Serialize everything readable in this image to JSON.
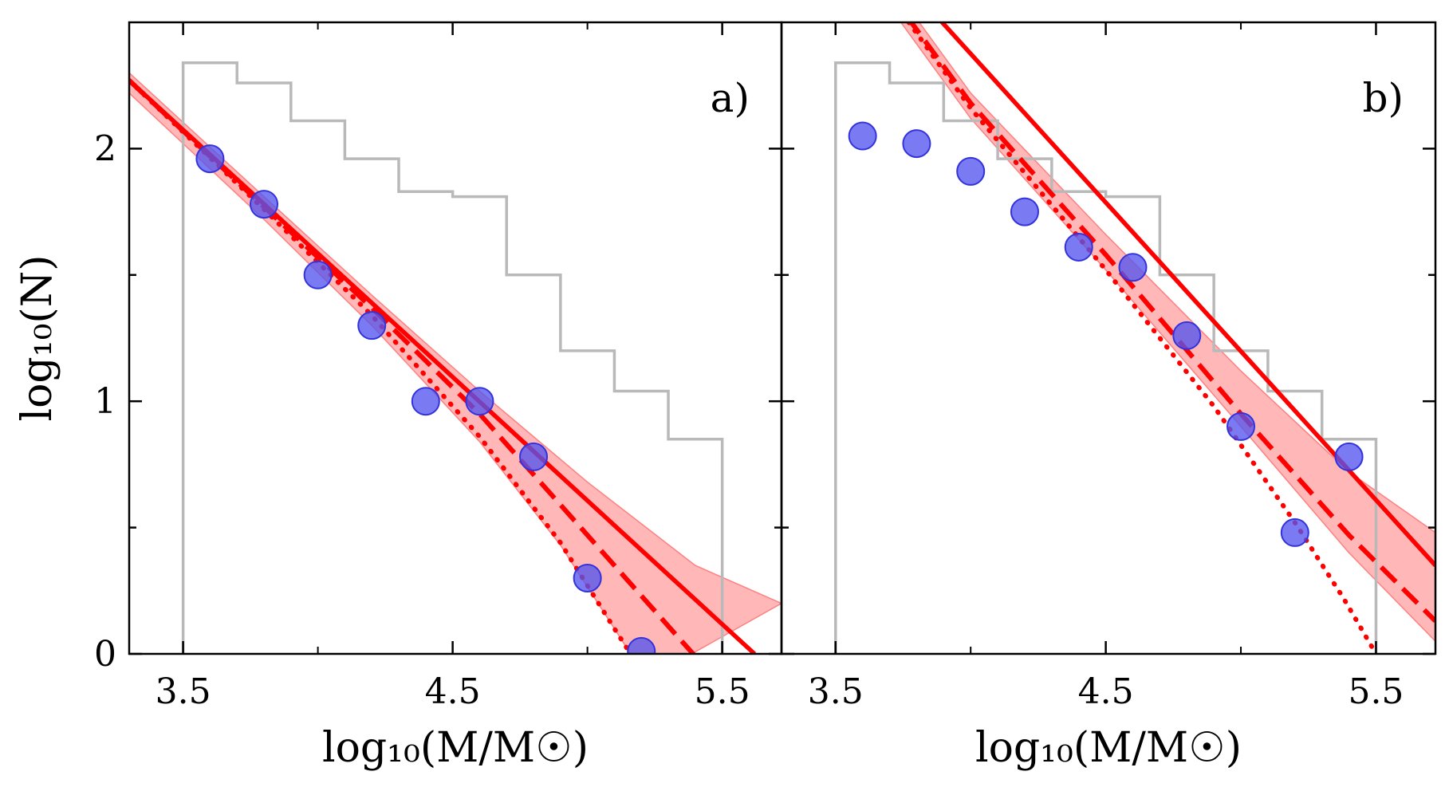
{
  "chart_data": [
    {
      "type": "scatter",
      "panel_label": "a)",
      "xlabel": "log₁₀(M/M☉)",
      "ylabel": "log₁₀(N)",
      "xlim": [
        3.3,
        5.72
      ],
      "ylim": [
        0,
        2.5
      ],
      "xticks": [
        "3.5",
        "4.5",
        "5.5"
      ],
      "xtick_values": [
        3.5,
        4.5,
        5.5
      ],
      "yticks": [
        "0",
        "1",
        "2"
      ],
      "ytick_values": [
        0,
        1,
        2
      ],
      "histogram": {
        "color": "#b9b9b9",
        "edges": [
          3.5,
          3.7,
          3.9,
          4.1,
          4.3,
          4.5,
          4.7,
          4.9,
          5.1,
          5.3,
          5.5
        ],
        "values": [
          2.34,
          2.26,
          2.11,
          1.96,
          1.83,
          1.81,
          1.5,
          1.2,
          1.04,
          0.85
        ]
      },
      "points": {
        "color": "#5555ee",
        "x": [
          3.6,
          3.8,
          4.0,
          4.2,
          4.4,
          4.6,
          4.8,
          5.0,
          5.2
        ],
        "y": [
          1.96,
          1.78,
          1.5,
          1.3,
          1.0,
          1.0,
          0.78,
          0.3,
          0.01
        ]
      },
      "fits": {
        "color": "#ff0000",
        "band_color": "#ffb3b3",
        "solid": {
          "x": [
            3.3,
            5.62
          ],
          "y": [
            2.27,
            0.0
          ]
        },
        "dashed": {
          "x": [
            3.3,
            3.8,
            4.2,
            4.6,
            5.0,
            5.35,
            5.56
          ],
          "y": [
            2.27,
            1.77,
            1.37,
            0.95,
            0.47,
            0.05,
            -0.2
          ]
        },
        "dotted": {
          "x": [
            3.3,
            3.8,
            4.2,
            4.6,
            4.9,
            5.1,
            5.25
          ],
          "y": [
            2.27,
            1.76,
            1.34,
            0.86,
            0.44,
            0.1,
            -0.15
          ]
        },
        "band_upper": {
          "x": [
            3.3,
            3.8,
            4.2,
            4.6,
            5.0,
            5.4,
            5.72
          ],
          "y": [
            2.3,
            1.81,
            1.42,
            1.04,
            0.68,
            0.35,
            0.2
          ]
        },
        "band_lower": {
          "x": [
            3.3,
            3.8,
            4.2,
            4.6,
            4.9,
            5.1,
            5.22
          ],
          "y": [
            2.22,
            1.72,
            1.3,
            0.84,
            0.43,
            0.1,
            -0.1
          ]
        }
      }
    },
    {
      "type": "scatter",
      "panel_label": "b)",
      "xlabel": "log₁₀(M/M☉)",
      "xlim": [
        3.3,
        5.72
      ],
      "ylim": [
        0,
        2.5
      ],
      "xticks": [
        "3.5",
        "4.5",
        "5.5"
      ],
      "xtick_values": [
        3.5,
        4.5,
        5.5
      ],
      "ytick_values": [
        0,
        1,
        2
      ],
      "histogram": {
        "color": "#b9b9b9",
        "edges": [
          3.5,
          3.7,
          3.9,
          4.1,
          4.3,
          4.5,
          4.7,
          4.9,
          5.1,
          5.3,
          5.5
        ],
        "values": [
          2.34,
          2.26,
          2.11,
          1.96,
          1.83,
          1.81,
          1.5,
          1.2,
          1.04,
          0.85
        ]
      },
      "points": {
        "color": "#5555ee",
        "x": [
          3.6,
          3.8,
          4.0,
          4.2,
          4.4,
          4.6,
          4.8,
          5.0,
          5.2,
          5.4
        ],
        "y": [
          2.05,
          2.02,
          1.91,
          1.75,
          1.61,
          1.53,
          1.26,
          0.9,
          0.48,
          0.78
        ]
      },
      "fits": {
        "color": "#ff0000",
        "band_color": "#ffb3b3",
        "solid": {
          "x": [
            3.3,
            5.72
          ],
          "y": [
            3.2,
            0.35
          ]
        },
        "dashed": {
          "x": [
            3.3,
            4.0,
            4.5,
            5.0,
            5.4,
            5.72
          ],
          "y": [
            3.2,
            2.18,
            1.58,
            0.95,
            0.47,
            0.13
          ]
        },
        "dotted": {
          "x": [
            3.3,
            4.0,
            4.5,
            4.9,
            5.2,
            5.38,
            5.5
          ],
          "y": [
            3.2,
            2.16,
            1.52,
            0.98,
            0.52,
            0.22,
            0.0
          ]
        },
        "band_upper": {
          "x": [
            3.3,
            4.0,
            4.5,
            5.0,
            5.4,
            5.72
          ],
          "y": [
            3.25,
            2.22,
            1.66,
            1.12,
            0.72,
            0.48
          ]
        },
        "band_lower": {
          "x": [
            3.3,
            4.0,
            4.5,
            5.0,
            5.4,
            5.72
          ],
          "y": [
            3.15,
            2.12,
            1.52,
            0.9,
            0.4,
            0.05
          ]
        }
      }
    }
  ]
}
